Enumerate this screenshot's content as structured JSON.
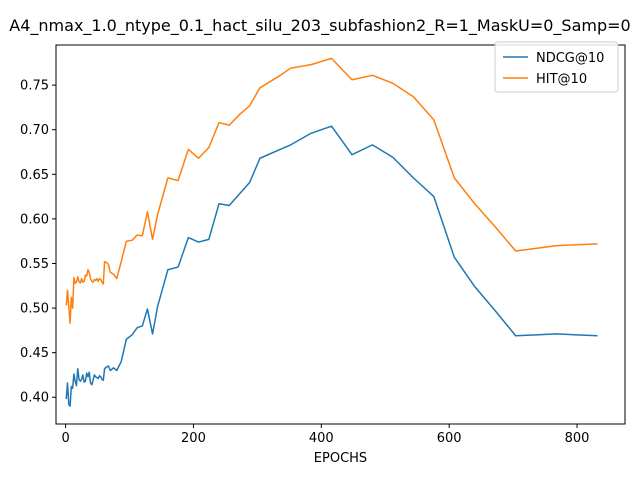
{
  "chart_data": {
    "type": "line",
    "title": "A4_nmax_1.0_ntype_0.1_hact_silu_203_subfashion2_R=1_MaskU=0_Samp=0",
    "xlabel": "EPOCHS",
    "ylabel": "",
    "xlim": [
      -15,
      875
    ],
    "ylim": [
      0.37,
      0.795
    ],
    "xticks": [
      0,
      200,
      400,
      600,
      800
    ],
    "xtick_labels": [
      "0",
      "200",
      "400",
      "600",
      "800"
    ],
    "yticks": [
      0.4,
      0.45,
      0.5,
      0.55,
      0.6,
      0.65,
      0.7,
      0.75
    ],
    "ytick_labels": [
      "0.40",
      "0.45",
      "0.50",
      "0.55",
      "0.60",
      "0.65",
      "0.70",
      "0.75"
    ],
    "grid": false,
    "legend_position": "top-right",
    "series": [
      {
        "name": "NDCG@10",
        "color": "#1f77b4",
        "x": [
          1,
          3,
          5,
          7,
          9,
          11,
          13,
          15,
          17,
          19,
          21,
          23,
          25,
          27,
          29,
          31,
          33,
          35,
          37,
          39,
          41,
          43,
          45,
          47,
          49,
          51,
          53,
          55,
          57,
          59,
          61,
          64,
          67,
          70,
          75,
          80,
          87,
          95,
          104,
          112,
          120,
          128,
          136,
          144,
          160,
          176,
          192,
          208,
          224,
          240,
          256,
          272,
          288,
          304,
          336,
          352,
          384,
          416,
          448,
          480,
          512,
          544,
          576,
          608,
          640,
          672,
          704,
          736,
          768,
          800,
          832
        ],
        "y": [
          0.398,
          0.416,
          0.392,
          0.39,
          0.412,
          0.41,
          0.426,
          0.418,
          0.413,
          0.432,
          0.42,
          0.418,
          0.42,
          0.425,
          0.417,
          0.418,
          0.427,
          0.423,
          0.428,
          0.416,
          0.414,
          0.419,
          0.425,
          0.423,
          0.422,
          0.421,
          0.424,
          0.423,
          0.42,
          0.419,
          0.432,
          0.434,
          0.435,
          0.43,
          0.433,
          0.43,
          0.44,
          0.465,
          0.47,
          0.478,
          0.48,
          0.499,
          0.471,
          0.502,
          0.543,
          0.546,
          0.579,
          0.574,
          0.577,
          0.617,
          0.615,
          0.628,
          0.641,
          0.668,
          0.678,
          0.683,
          0.696,
          0.704,
          0.672,
          0.683,
          0.669,
          0.646,
          0.625,
          0.557,
          0.524,
          0.497,
          0.469,
          0.47,
          0.471,
          0.47,
          0.469
        ]
      },
      {
        "name": "HIT@10",
        "color": "#ff7f0e",
        "x": [
          1,
          3,
          5,
          7,
          9,
          11,
          13,
          15,
          17,
          19,
          21,
          23,
          25,
          27,
          29,
          31,
          33,
          35,
          37,
          39,
          41,
          43,
          45,
          47,
          49,
          51,
          53,
          55,
          57,
          59,
          61,
          64,
          67,
          70,
          75,
          80,
          87,
          95,
          104,
          112,
          120,
          128,
          136,
          144,
          160,
          176,
          192,
          208,
          224,
          240,
          256,
          272,
          288,
          304,
          336,
          352,
          384,
          416,
          448,
          480,
          512,
          544,
          576,
          608,
          640,
          672,
          704,
          736,
          768,
          800,
          832
        ],
        "y": [
          0.503,
          0.52,
          0.501,
          0.483,
          0.512,
          0.5,
          0.534,
          0.528,
          0.529,
          0.535,
          0.53,
          0.528,
          0.533,
          0.529,
          0.53,
          0.537,
          0.536,
          0.543,
          0.54,
          0.533,
          0.53,
          0.529,
          0.532,
          0.531,
          0.533,
          0.53,
          0.533,
          0.532,
          0.529,
          0.527,
          0.552,
          0.551,
          0.549,
          0.54,
          0.538,
          0.533,
          0.552,
          0.575,
          0.576,
          0.582,
          0.581,
          0.608,
          0.577,
          0.605,
          0.646,
          0.643,
          0.678,
          0.668,
          0.68,
          0.708,
          0.705,
          0.717,
          0.727,
          0.747,
          0.761,
          0.769,
          0.773,
          0.78,
          0.756,
          0.761,
          0.752,
          0.737,
          0.711,
          0.646,
          0.617,
          0.591,
          0.564,
          0.567,
          0.57,
          0.571,
          0.572
        ]
      }
    ]
  }
}
